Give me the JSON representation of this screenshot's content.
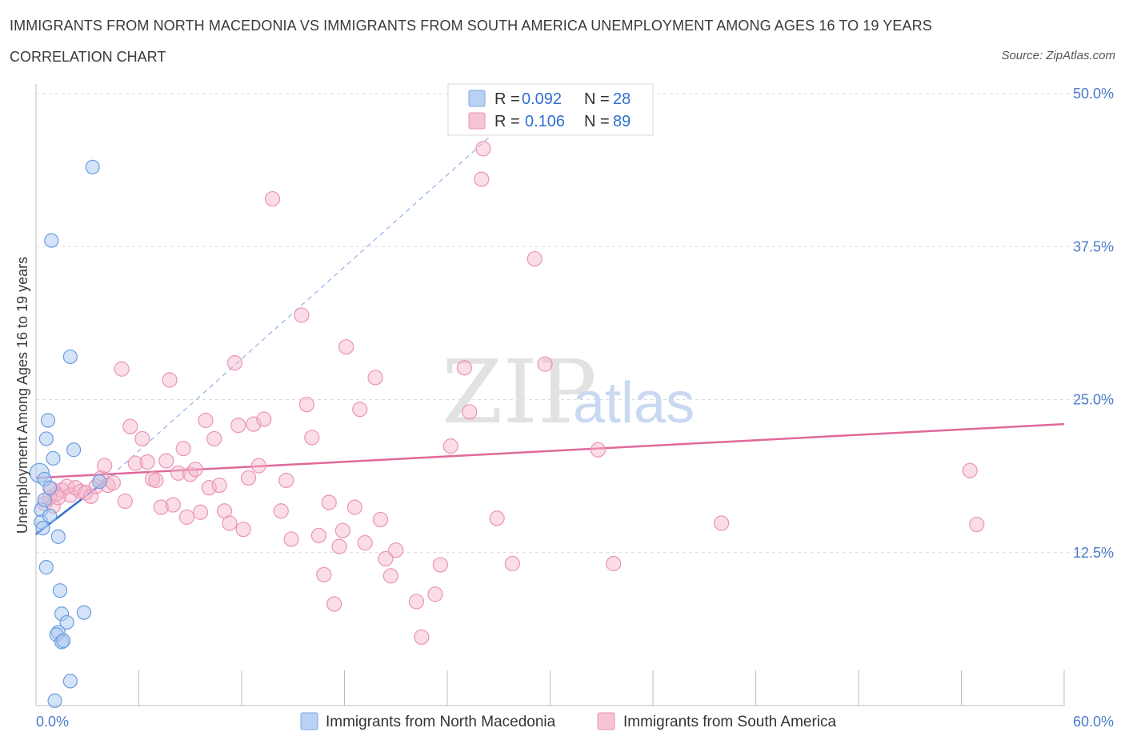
{
  "header": {
    "title": "IMMIGRANTS FROM NORTH MACEDONIA VS IMMIGRANTS FROM SOUTH AMERICA UNEMPLOYMENT AMONG AGES 16 TO 19 YEARS",
    "subtitle": "CORRELATION CHART",
    "source": "Source: ZipAtlas.com"
  },
  "watermark": {
    "zip": "ZIP",
    "atlas": "atlas"
  },
  "legend": {
    "series1": {
      "r_label": "R = ",
      "r_value": "0.092",
      "n_label": "N = ",
      "n_value": "28"
    },
    "series2": {
      "r_label": "R = ",
      "r_value": "0.106",
      "n_label": "N = ",
      "n_value": "89"
    }
  },
  "chart_data": {
    "type": "scatter",
    "title": "IMMIGRANTS FROM NORTH MACEDONIA VS IMMIGRANTS FROM SOUTH AMERICA UNEMPLOYMENT AMONG AGES 16 TO 19 YEARS",
    "xlabel": "",
    "ylabel": "Unemployment Among Ages 16 to 19 years",
    "xlim": [
      0,
      60
    ],
    "ylim": [
      0,
      50
    ],
    "x_tick_labels": {
      "min": "0.0%",
      "max": "60.0%"
    },
    "y_ticks": [
      {
        "value": 12.5,
        "label": "12.5%"
      },
      {
        "value": 25,
        "label": "25.0%"
      },
      {
        "value": 37.5,
        "label": "37.5%"
      },
      {
        "value": 50,
        "label": "50.0%"
      }
    ],
    "grid": true,
    "colors": {
      "series1": "#6a9de0",
      "series2": "#ec8fb0",
      "line1": "#2f6fcf",
      "line2": "#e0699a",
      "tick": "#4a7cc9"
    },
    "series": [
      {
        "name": "Immigrants from North Macedonia",
        "points": [
          [
            0.2,
            19.0
          ],
          [
            0.3,
            16.0
          ],
          [
            0.3,
            15.0
          ],
          [
            0.4,
            14.5
          ],
          [
            0.5,
            16.8
          ],
          [
            0.5,
            18.5
          ],
          [
            0.6,
            21.8
          ],
          [
            0.7,
            23.3
          ],
          [
            0.8,
            17.8
          ],
          [
            0.8,
            15.5
          ],
          [
            0.9,
            38.0
          ],
          [
            1.0,
            20.2
          ],
          [
            0.6,
            11.3
          ],
          [
            1.3,
            13.8
          ],
          [
            1.4,
            9.4
          ],
          [
            1.5,
            7.5
          ],
          [
            1.3,
            6.0
          ],
          [
            1.2,
            5.8
          ],
          [
            1.5,
            5.2
          ],
          [
            1.6,
            5.3
          ],
          [
            1.8,
            6.8
          ],
          [
            2.0,
            2.0
          ],
          [
            1.1,
            0.4
          ],
          [
            2.0,
            28.5
          ],
          [
            2.2,
            20.9
          ],
          [
            2.8,
            7.6
          ],
          [
            3.3,
            44.0
          ],
          [
            3.7,
            18.3
          ]
        ],
        "trend": {
          "x": [
            0,
            4.0
          ],
          "y": [
            14.0,
            18.3
          ]
        },
        "trend_extension": {
          "x": [
            4.0,
            28.5
          ],
          "y": [
            18.3,
            49.0
          ]
        }
      },
      {
        "name": "Immigrants from South America",
        "points": [
          [
            0.5,
            16.5
          ],
          [
            0.8,
            17.0
          ],
          [
            1.0,
            16.3
          ],
          [
            1.2,
            17.3
          ],
          [
            1.5,
            17.6
          ],
          [
            1.8,
            17.9
          ],
          [
            2.0,
            17.2
          ],
          [
            2.3,
            17.8
          ],
          [
            2.6,
            17.5
          ],
          [
            2.9,
            17.4
          ],
          [
            3.2,
            17.1
          ],
          [
            3.5,
            17.9
          ],
          [
            3.8,
            18.6
          ],
          [
            4.0,
            19.6
          ],
          [
            4.2,
            18.0
          ],
          [
            4.5,
            18.2
          ],
          [
            5.0,
            27.5
          ],
          [
            5.2,
            16.7
          ],
          [
            5.5,
            22.8
          ],
          [
            5.8,
            19.8
          ],
          [
            6.2,
            21.8
          ],
          [
            6.5,
            19.9
          ],
          [
            6.8,
            18.5
          ],
          [
            7.0,
            18.4
          ],
          [
            7.3,
            16.2
          ],
          [
            7.6,
            20.0
          ],
          [
            7.8,
            26.6
          ],
          [
            8.0,
            16.4
          ],
          [
            8.3,
            19.0
          ],
          [
            8.6,
            21.0
          ],
          [
            8.8,
            15.4
          ],
          [
            9.0,
            18.9
          ],
          [
            9.3,
            19.3
          ],
          [
            9.6,
            15.8
          ],
          [
            9.9,
            23.3
          ],
          [
            10.1,
            17.8
          ],
          [
            10.4,
            21.8
          ],
          [
            10.7,
            18.0
          ],
          [
            11.0,
            15.9
          ],
          [
            11.3,
            14.9
          ],
          [
            11.6,
            28.0
          ],
          [
            11.8,
            22.9
          ],
          [
            12.1,
            14.4
          ],
          [
            12.4,
            18.6
          ],
          [
            12.7,
            23.0
          ],
          [
            13.0,
            19.6
          ],
          [
            13.3,
            23.4
          ],
          [
            13.8,
            41.4
          ],
          [
            14.3,
            15.9
          ],
          [
            14.6,
            18.4
          ],
          [
            14.9,
            13.6
          ],
          [
            15.5,
            31.9
          ],
          [
            15.8,
            24.6
          ],
          [
            16.1,
            21.9
          ],
          [
            16.5,
            13.9
          ],
          [
            16.8,
            10.7
          ],
          [
            17.1,
            16.6
          ],
          [
            17.4,
            8.3
          ],
          [
            17.7,
            13.0
          ],
          [
            17.9,
            14.3
          ],
          [
            18.1,
            29.3
          ],
          [
            18.6,
            16.2
          ],
          [
            18.9,
            24.2
          ],
          [
            19.2,
            13.3
          ],
          [
            19.8,
            26.8
          ],
          [
            20.1,
            15.2
          ],
          [
            20.4,
            12.0
          ],
          [
            20.7,
            10.6
          ],
          [
            21.0,
            12.7
          ],
          [
            22.2,
            8.5
          ],
          [
            22.5,
            5.6
          ],
          [
            23.3,
            9.1
          ],
          [
            23.6,
            11.5
          ],
          [
            24.2,
            21.2
          ],
          [
            25.0,
            27.6
          ],
          [
            25.3,
            24.0
          ],
          [
            26.1,
            45.5
          ],
          [
            26.0,
            43.0
          ],
          [
            26.9,
            15.3
          ],
          [
            27.8,
            11.6
          ],
          [
            29.1,
            36.5
          ],
          [
            29.7,
            27.9
          ],
          [
            32.8,
            20.9
          ],
          [
            33.7,
            11.6
          ],
          [
            40.0,
            14.9
          ],
          [
            54.5,
            19.2
          ],
          [
            54.9,
            14.8
          ],
          [
            0.9,
            17.7
          ],
          [
            1.3,
            17.0
          ]
        ],
        "trend": {
          "x": [
            0,
            60
          ],
          "y": [
            18.6,
            23.0
          ]
        }
      }
    ]
  },
  "bottom_legend": {
    "series1_label": "Immigrants from North Macedonia",
    "series2_label": "Immigrants from South America"
  }
}
